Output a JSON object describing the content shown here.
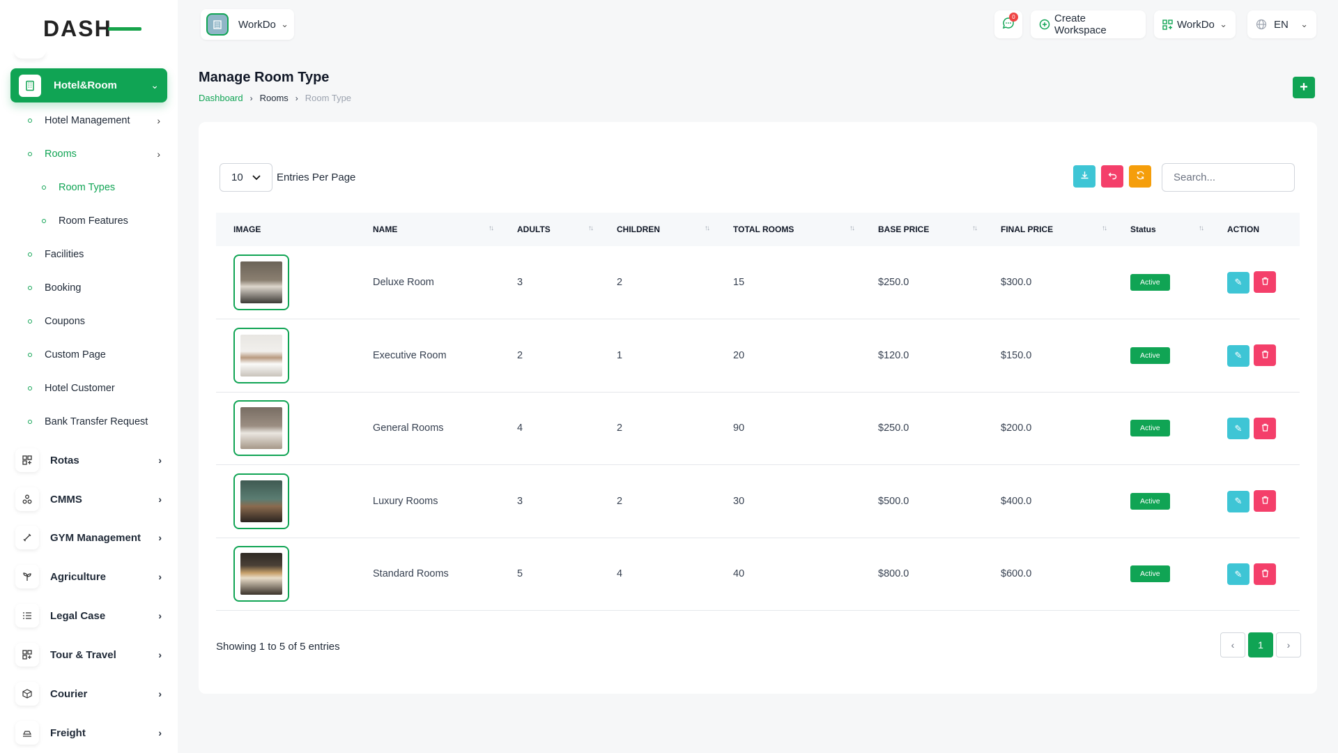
{
  "sidebar": {
    "logo": "DASH",
    "active_module": "Hotel&Room",
    "sub_items": [
      {
        "label": "Hotel Management",
        "arrow": "›"
      },
      {
        "label": "Rooms",
        "arrow": "›"
      },
      {
        "label": "Room Types"
      },
      {
        "label": "Room Features"
      },
      {
        "label": "Facilities"
      },
      {
        "label": "Booking"
      },
      {
        "label": "Coupons"
      },
      {
        "label": "Custom Page"
      },
      {
        "label": "Hotel Customer"
      },
      {
        "label": "Bank Transfer Request"
      }
    ],
    "modules": [
      {
        "label": "Rotas",
        "icon": "grid-icon"
      },
      {
        "label": "CMMS",
        "icon": "nodes-icon"
      },
      {
        "label": "GYM Management",
        "icon": "dumbbell-icon"
      },
      {
        "label": "Agriculture",
        "icon": "plant-icon"
      },
      {
        "label": "Legal Case",
        "icon": "list-icon"
      },
      {
        "label": "Tour & Travel",
        "icon": "grid-icon"
      },
      {
        "label": "Courier",
        "icon": "box-icon"
      },
      {
        "label": "Freight",
        "icon": "ship-icon"
      }
    ]
  },
  "header": {
    "workspace": "WorkDo",
    "notifications": "0",
    "create_workspace": "Create Workspace",
    "workspace_switch": "WorkDo",
    "language": "EN"
  },
  "page": {
    "title": "Manage Room Type",
    "breadcrumb": [
      "Dashboard",
      "Rooms",
      "Room Type"
    ]
  },
  "table_controls": {
    "entries_value": "10",
    "entries_label": "Entries Per Page",
    "search_placeholder": "Search..."
  },
  "table": {
    "columns": [
      "IMAGE",
      "NAME",
      "ADULTS",
      "CHILDREN",
      "TOTAL ROOMS",
      "BASE PRICE",
      "FINAL PRICE",
      "Status",
      "ACTION"
    ],
    "rows": [
      {
        "name": "Deluxe Room",
        "adults": "3",
        "children": "2",
        "total_rooms": "15",
        "base_price": "$250.0",
        "final_price": "$300.0",
        "status": "Active"
      },
      {
        "name": "Executive Room",
        "adults": "2",
        "children": "1",
        "total_rooms": "20",
        "base_price": "$120.0",
        "final_price": "$150.0",
        "status": "Active"
      },
      {
        "name": "General Rooms",
        "adults": "4",
        "children": "2",
        "total_rooms": "90",
        "base_price": "$250.0",
        "final_price": "$200.0",
        "status": "Active"
      },
      {
        "name": "Luxury Rooms",
        "adults": "3",
        "children": "2",
        "total_rooms": "30",
        "base_price": "$500.0",
        "final_price": "$400.0",
        "status": "Active"
      },
      {
        "name": "Standard Rooms",
        "adults": "5",
        "children": "4",
        "total_rooms": "40",
        "base_price": "$800.0",
        "final_price": "$600.0",
        "status": "Active"
      }
    ]
  },
  "footer": {
    "showing": "Showing 1 to 5 of 5 entries",
    "page": "1"
  },
  "colors": {
    "accent": "#10a454",
    "edit": "#3ec5d5",
    "delete": "#f43f6a",
    "refresh": "#f59e0b",
    "download": "#3ec5d5",
    "undo": "#f43f6a"
  }
}
